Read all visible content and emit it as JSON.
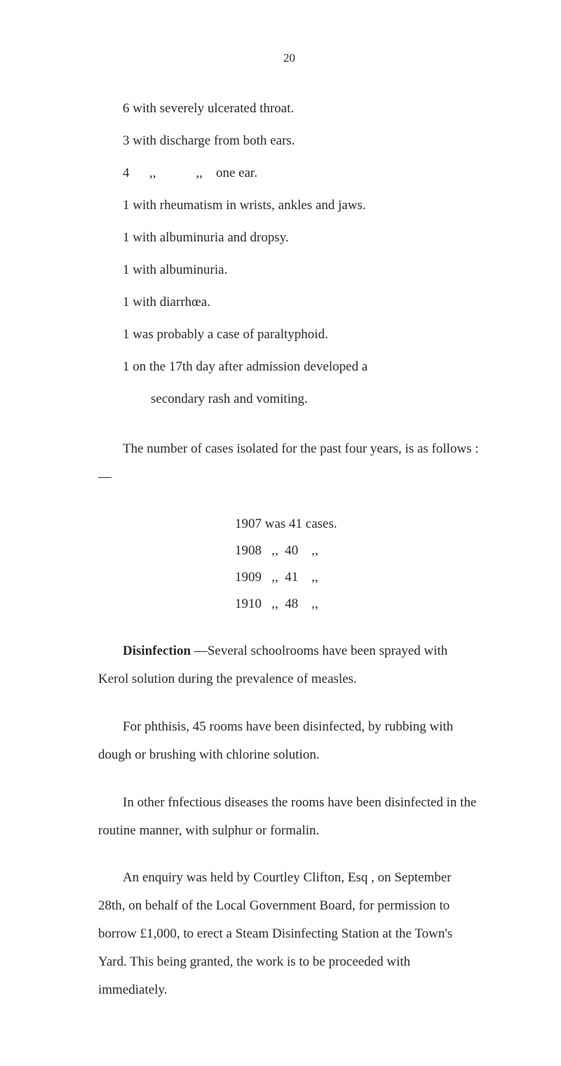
{
  "pageNumber": "20",
  "listItems": [
    "6 with severely ulcerated throat.",
    "3 with discharge from both ears.",
    "4      ,,            ,,    one ear.",
    "1 with rheumatism in wrists, ankles and jaws.",
    "1 with albuminuria and dropsy.",
    "1 with albuminuria.",
    "1 with diarrhœa.",
    "1 was probably a case of paraltyphoid.",
    "1 on the 17th day after admission developed a"
  ],
  "listItemIndent": "secondary rash and vomiting.",
  "para1_part1": "The number of cases isolated for the past four years, is as follows : —",
  "yearRows": [
    "1907 was 41 cases.",
    "1908   ,,  40    ,,",
    "1909   ,,  41    ,,",
    "1910   ,,  48    ,,"
  ],
  "para2_bold": "Disinfection",
  "para2_rest": " —Several schoolrooms have been sprayed with Kerol solution during the prevalence of measles.",
  "para3": "For phthisis, 45 rooms have been disinfected, by rubbing with dough or brushing with chlorine solution.",
  "para4": "In other fnfectious diseases the rooms have been dis­infected in the routine manner, with sulphur or formalin.",
  "para5": "An enquiry was held by Courtley Clifton, Esq , on September 28th, on behalf of the Local Government Board, for permission to borrow £1,000, to erect a Steam Disinfecting Station at the Town's Yard. This being granted, the work is to be proceeded with immediately."
}
